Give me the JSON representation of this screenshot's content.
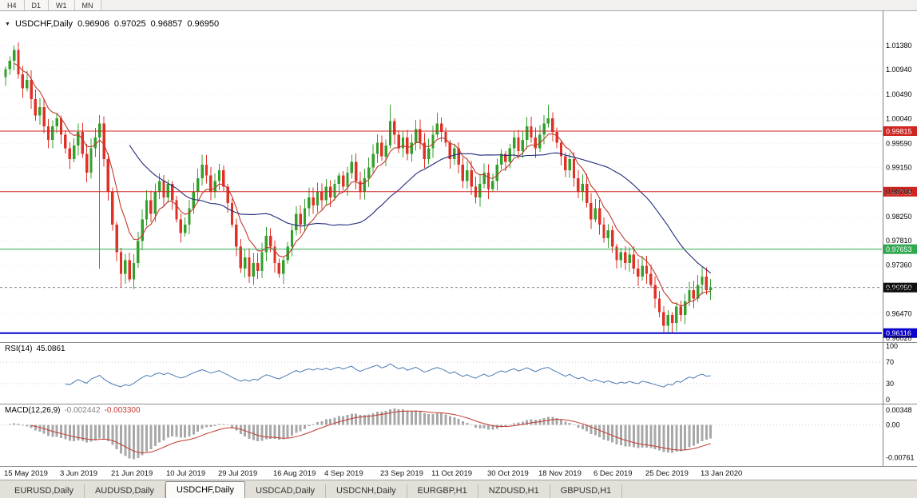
{
  "toolbar": {
    "timeframes": [
      "H4",
      "D1",
      "W1",
      "MN"
    ]
  },
  "chart": {
    "title_symbol": "USDCHF,Daily",
    "ohlc": [
      "0.96906",
      "0.97025",
      "0.96857",
      "0.96950"
    ],
    "marker_icon": "▼",
    "price_axis_labels": [
      "1.01380",
      "1.00940",
      "1.00490",
      "1.00040",
      "0.99590",
      "0.99150",
      "0.98700",
      "0.98250",
      "0.97810",
      "0.97360",
      "0.96910",
      "0.96470",
      "0.96020"
    ],
    "levels": [
      {
        "label": "0.99815",
        "price": 0.99815,
        "color": "#d02520",
        "width": 1
      },
      {
        "label": "0.98705",
        "price": 0.98705,
        "color": "#d02520",
        "width": 1
      },
      {
        "label": "0.97653",
        "price": 0.97653,
        "color": "#2fa84f",
        "width": 1
      },
      {
        "label": "0.96116",
        "price": 0.96116,
        "color": "#0a00cc",
        "width": 2
      }
    ],
    "current_price": {
      "label": "0.96950",
      "value": 0.9695,
      "bg": "#101010"
    }
  },
  "rsi": {
    "label": "RSI(14)",
    "value": "45.0861",
    "levels": [
      "100",
      "70",
      "30",
      "0"
    ],
    "level_values": [
      100,
      70,
      30,
      0
    ],
    "line_color": "#4a7ab5"
  },
  "macd": {
    "label": "MACD(12,26,9)",
    "main_value": "-0.002442",
    "signal_value": "-0.003300",
    "axis_labels": [
      "0.00348",
      "0.00",
      "-0.00761"
    ],
    "hist_color": "#a8a8a8",
    "signal_color": "#c23a2f"
  },
  "bottom_tabs": {
    "items": [
      "EURUSD,Daily",
      "AUDUSD,Daily",
      "USDCHF,Daily",
      "USDCAD,Daily",
      "USDCNH,Daily",
      "EURGBP,H1",
      "NZDUSD,H1",
      "GBPUSD,H1"
    ],
    "active": "USDCHF,Daily"
  },
  "chart_data": {
    "type": "candlestick",
    "symbol": "USDCHF",
    "timeframe": "Daily",
    "title": "USDCHF,Daily 0.96906 0.97025 0.96857 0.96950",
    "ylim": [
      0.9595,
      1.0201
    ],
    "colors": {
      "up": "#33a02c",
      "down": "#e03127"
    },
    "x_labels": [
      {
        "label": "15 May 2019",
        "bar": 0
      },
      {
        "label": "3 Jun 2019",
        "bar": 13
      },
      {
        "label": "21 Jun 2019",
        "bar": 25
      },
      {
        "label": "10 Jul 2019",
        "bar": 38
      },
      {
        "label": "29 Jul 2019",
        "bar": 50
      },
      {
        "label": "16 Aug 2019",
        "bar": 63
      },
      {
        "label": "4 Sep 2019",
        "bar": 75
      },
      {
        "label": "23 Sep 2019",
        "bar": 88
      },
      {
        "label": "11 Oct 2019",
        "bar": 100
      },
      {
        "label": "30 Oct 2019",
        "bar": 113
      },
      {
        "label": "18 Nov 2019",
        "bar": 125
      },
      {
        "label": "6 Dec 2019",
        "bar": 138
      },
      {
        "label": "25 Dec 2019",
        "bar": 150
      },
      {
        "label": "13 Jan 2020",
        "bar": 163
      }
    ],
    "first_open": 1.008,
    "closes": [
      1.0095,
      1.011,
      1.013,
      1.0085,
      1.006,
      1.0075,
      1.004,
      1.001,
      1.0025,
      0.999,
      0.9965,
      0.999,
      1.0005,
      0.9975,
      0.995,
      0.993,
      0.9955,
      0.998,
      0.994,
      0.9905,
      0.995,
      0.997,
      0.9995,
      0.993,
      0.987,
      0.981,
      0.976,
      0.972,
      0.9745,
      0.971,
      0.974,
      0.978,
      0.982,
      0.9855,
      0.983,
      0.987,
      0.989,
      0.986,
      0.9885,
      0.9855,
      0.982,
      0.9795,
      0.981,
      0.984,
      0.987,
      0.9895,
      0.992,
      0.99,
      0.987,
      0.989,
      0.991,
      0.988,
      0.985,
      0.981,
      0.977,
      0.973,
      0.975,
      0.9715,
      0.974,
      0.9725,
      0.976,
      0.979,
      0.977,
      0.974,
      0.972,
      0.9745,
      0.977,
      0.98,
      0.983,
      0.981,
      0.984,
      0.986,
      0.9845,
      0.987,
      0.9855,
      0.988,
      0.986,
      0.9885,
      0.99,
      0.988,
      0.9905,
      0.9925,
      0.989,
      0.987,
      0.9895,
      0.9915,
      0.994,
      0.996,
      0.9935,
      0.9955,
      1.0,
      0.9975,
      0.995,
      0.997,
      0.994,
      0.996,
      0.9985,
      0.996,
      0.993,
      0.995,
      0.9975,
      0.9995,
      0.998,
      0.996,
      0.993,
      0.995,
      0.992,
      0.989,
      0.991,
      0.988,
      0.986,
      0.9885,
      0.9905,
      0.9875,
      0.989,
      0.992,
      0.994,
      0.9925,
      0.995,
      0.997,
      0.9945,
      0.9965,
      0.999,
      0.997,
      0.995,
      0.9975,
      0.9995,
      1.0005,
      0.998,
      0.996,
      0.9935,
      0.991,
      0.993,
      0.9895,
      0.987,
      0.9885,
      0.985,
      0.982,
      0.984,
      0.981,
      0.9785,
      0.98,
      0.977,
      0.9745,
      0.976,
      0.974,
      0.9755,
      0.973,
      0.9715,
      0.9735,
      0.972,
      0.97,
      0.9675,
      0.965,
      0.9625,
      0.9645,
      0.963,
      0.966,
      0.9645,
      0.967,
      0.969,
      0.9675,
      0.97,
      0.9715,
      0.969,
      0.9695
    ],
    "wick_overrides": {
      "2": {
        "h": 1.0138
      },
      "22": {
        "l": 0.973
      },
      "27": {
        "l": 0.9695
      },
      "90": {
        "h": 1.003
      },
      "101": {
        "h": 1.0015
      },
      "127": {
        "h": 1.003
      },
      "154": {
        "l": 0.9613
      },
      "156": {
        "l": 0.96116
      }
    },
    "moving_averages": [
      {
        "name": "fast",
        "period": 8,
        "color": "#c0392b"
      },
      {
        "name": "slow",
        "period": 30,
        "color": "#1f2a7a"
      }
    ],
    "indicators": {
      "rsi_period": 14,
      "macd": [
        12,
        26,
        9
      ]
    }
  }
}
